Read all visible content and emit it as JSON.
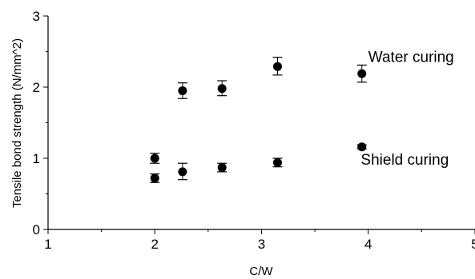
{
  "chart_data": {
    "type": "scatter",
    "title": "",
    "xlabel": "C/W",
    "ylabel": "Tensile bond strength (N/mm^2)",
    "xlim": [
      1,
      5
    ],
    "ylim": [
      0,
      3
    ],
    "x_ticks": [
      "1",
      "2",
      "3",
      "4",
      "5"
    ],
    "y_ticks": [
      "0",
      "1",
      "2",
      "3"
    ],
    "grid": false,
    "series": [
      {
        "name": "Water curing",
        "points": [
          {
            "x": 2.26,
            "y": 1.95,
            "err_low": 1.84,
            "err_high": 2.06
          },
          {
            "x": 2.63,
            "y": 1.98,
            "err_low": 1.88,
            "err_high": 2.09
          },
          {
            "x": 3.15,
            "y": 2.29,
            "err_low": 2.17,
            "err_high": 2.42
          },
          {
            "x": 3.94,
            "y": 2.19,
            "err_low": 2.07,
            "err_high": 2.31
          }
        ]
      },
      {
        "name": "Shield curing",
        "points": [
          {
            "x": 2.0,
            "y": 1.0,
            "err_low": 0.93,
            "err_high": 1.07
          },
          {
            "x": 2.0,
            "y": 0.72,
            "err_low": 0.66,
            "err_high": 0.78
          },
          {
            "x": 2.26,
            "y": 0.81,
            "err_low": 0.7,
            "err_high": 0.93
          },
          {
            "x": 2.63,
            "y": 0.87,
            "err_low": 0.81,
            "err_high": 0.93
          },
          {
            "x": 3.15,
            "y": 0.94,
            "err_low": 0.88,
            "err_high": 1.0
          },
          {
            "x": 3.94,
            "y": 1.16,
            "err_low": 1.13,
            "err_high": 1.19
          }
        ]
      }
    ],
    "annotations": [
      {
        "text": "Water curing",
        "x": 4.0,
        "y": 2.43
      },
      {
        "text": "Shield curing",
        "x": 3.93,
        "y": 0.99
      }
    ],
    "marker_color": "#000000"
  }
}
